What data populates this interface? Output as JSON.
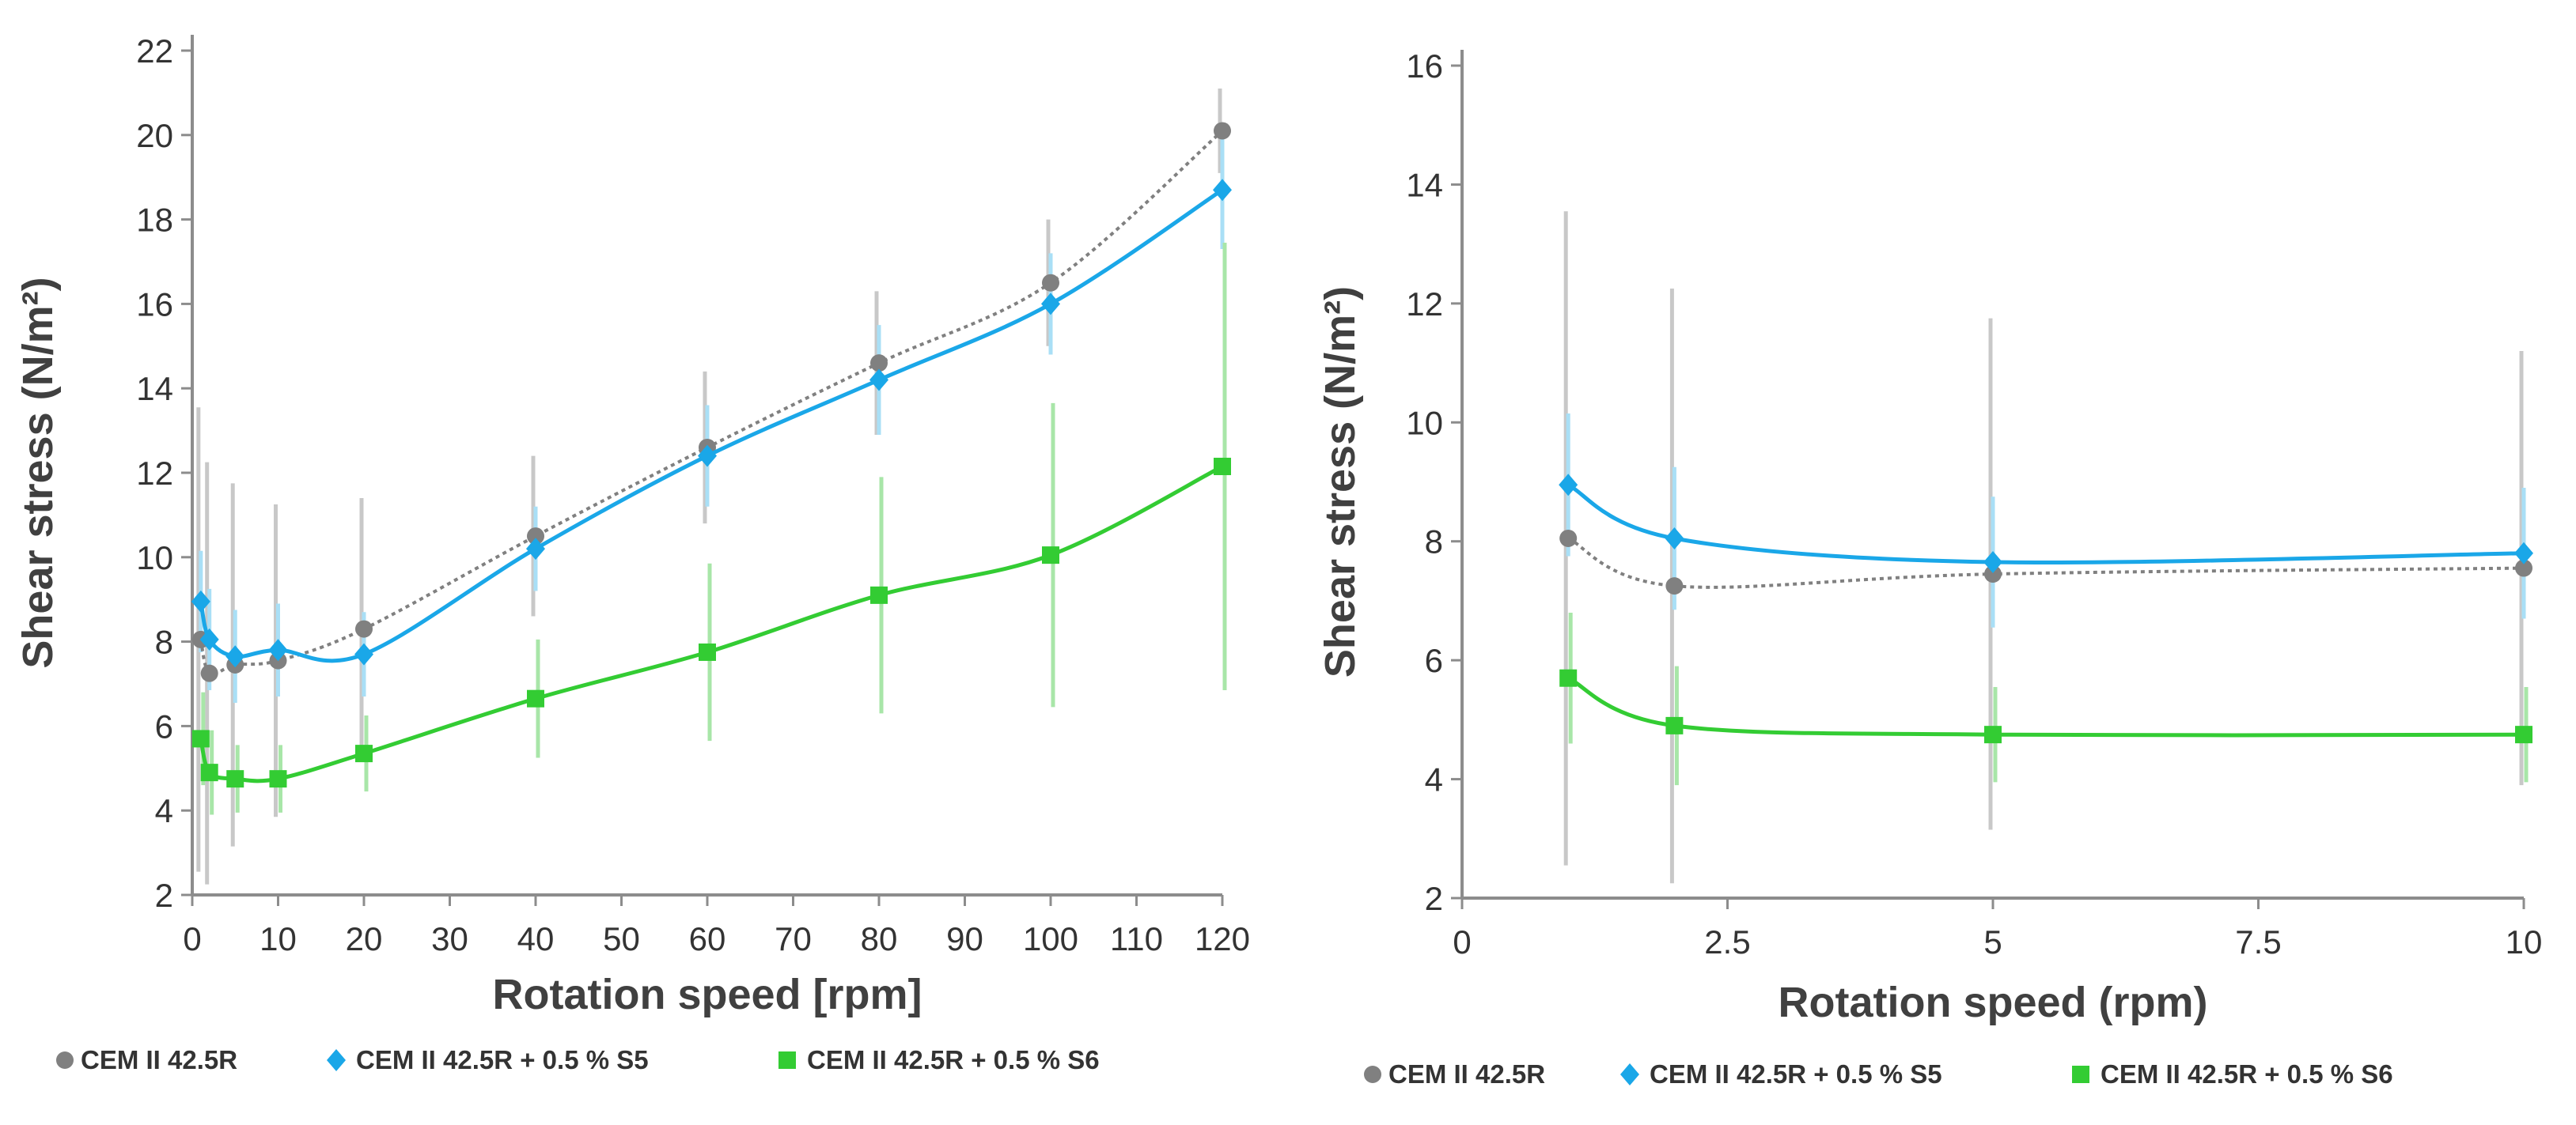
{
  "chart_data": [
    {
      "type": "line",
      "title": "",
      "xlabel": "Rotation speed [rpm]",
      "ylabel": "Shear stress (N/m²)",
      "xlim": [
        0,
        120
      ],
      "ylim": [
        2,
        22
      ],
      "x_ticks": [
        0,
        10,
        20,
        30,
        40,
        50,
        60,
        70,
        80,
        90,
        100,
        110,
        120
      ],
      "x_tick_labels": [
        "0",
        "10",
        "20",
        "30",
        "40",
        "50",
        "60",
        "70",
        "80",
        "90",
        "100",
        "110",
        "120"
      ],
      "y_ticks": [
        2,
        4,
        6,
        8,
        10,
        12,
        14,
        16,
        18,
        20,
        22
      ],
      "y_tick_labels": [
        "2",
        "4",
        "6",
        "8",
        "10",
        "12",
        "14",
        "16",
        "18",
        "20",
        "22"
      ],
      "grid": false,
      "legend_position": "bottom",
      "series": [
        {
          "name": "CEM II 42.5R",
          "color": "#808080",
          "line_style": "dotted",
          "marker": "circle",
          "x": [
            1,
            2,
            5,
            10,
            20,
            40,
            60,
            80,
            100,
            120
          ],
          "y": [
            8.05,
            7.25,
            7.45,
            7.55,
            8.3,
            10.5,
            12.6,
            14.6,
            16.5,
            20.1
          ],
          "err": [
            5.5,
            5.0,
            4.3,
            3.7,
            3.1,
            1.9,
            1.8,
            1.7,
            1.5,
            1.0
          ]
        },
        {
          "name": "CEM II 42.5R + 0.5 % S5",
          "color": "#1aa7e8",
          "line_style": "solid",
          "marker": "diamond",
          "x": [
            1,
            2,
            5,
            10,
            20,
            40,
            60,
            80,
            100,
            120
          ],
          "y": [
            8.95,
            8.05,
            7.65,
            7.8,
            7.7,
            10.2,
            12.4,
            14.2,
            16.0,
            18.7
          ],
          "err": [
            1.2,
            1.2,
            1.1,
            1.1,
            1.0,
            1.0,
            1.2,
            1.3,
            1.2,
            1.4
          ]
        },
        {
          "name": "CEM II 42.5R + 0.5 % S6",
          "color": "#33cc33",
          "line_style": "solid",
          "marker": "square",
          "x": [
            1,
            2,
            5,
            10,
            20,
            40,
            60,
            80,
            100,
            120
          ],
          "y": [
            5.7,
            4.9,
            4.75,
            4.75,
            5.35,
            6.65,
            7.75,
            9.1,
            10.05,
            12.15
          ],
          "err": [
            1.1,
            1.0,
            0.8,
            0.8,
            0.9,
            1.4,
            2.1,
            2.8,
            3.6,
            5.3
          ]
        }
      ]
    },
    {
      "type": "line",
      "title": "",
      "xlabel": "Rotation speed (rpm)",
      "ylabel": "Shear stress (N/m²)",
      "xlim": [
        0,
        10
      ],
      "ylim": [
        2,
        16
      ],
      "x_ticks": [
        0,
        2.5,
        5,
        7.5,
        10
      ],
      "x_tick_labels": [
        "0",
        "2.5",
        "5",
        "7.5",
        "10"
      ],
      "y_ticks": [
        2,
        4,
        6,
        8,
        10,
        12,
        14,
        16
      ],
      "y_tick_labels": [
        "2",
        "4",
        "6",
        "8",
        "10",
        "12",
        "14",
        "16"
      ],
      "grid": false,
      "legend_position": "bottom",
      "series": [
        {
          "name": "CEM II 42.5R",
          "color": "#808080",
          "line_style": "dotted",
          "marker": "circle",
          "x": [
            1,
            2,
            5,
            10
          ],
          "y": [
            8.05,
            7.25,
            7.45,
            7.55
          ],
          "err": [
            5.5,
            5.0,
            4.3,
            3.65
          ]
        },
        {
          "name": "CEM II 42.5R + 0.5 % S5",
          "color": "#1aa7e8",
          "line_style": "solid",
          "marker": "diamond",
          "x": [
            1,
            2,
            5,
            10
          ],
          "y": [
            8.95,
            8.05,
            7.65,
            7.8
          ],
          "err": [
            1.2,
            1.2,
            1.1,
            1.1
          ]
        },
        {
          "name": "CEM II 42.5R + 0.5 % S6",
          "color": "#33cc33",
          "line_style": "solid",
          "marker": "square",
          "x": [
            1,
            2,
            5,
            10
          ],
          "y": [
            5.7,
            4.9,
            4.75,
            4.75
          ],
          "err": [
            1.1,
            1.0,
            0.8,
            0.8
          ]
        }
      ]
    }
  ]
}
